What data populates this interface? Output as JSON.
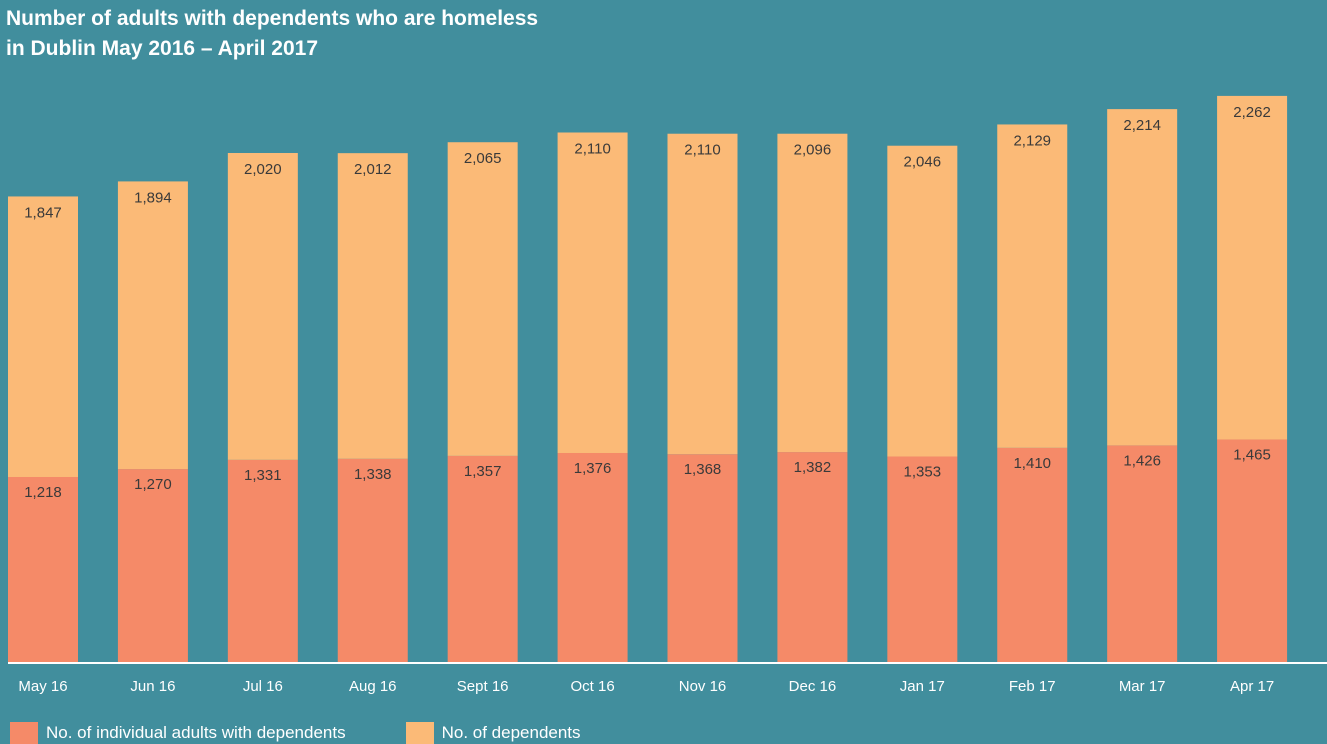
{
  "chart_data": {
    "type": "bar",
    "stacked": true,
    "title_line1": "Number of adults with dependents who are homeless",
    "title_line2": "in Dublin May 2016 – April 2017",
    "categories": [
      "May 16",
      "Jun 16",
      "Jul 16",
      "Aug 16",
      "Sept 16",
      "Oct 16",
      "Nov 16",
      "Dec 16",
      "Jan 17",
      "Feb 17",
      "Mar 17",
      "Apr 17"
    ],
    "series": [
      {
        "name": "No. of individual adults with dependents",
        "color": "#f58a68",
        "values": [
          1218,
          1270,
          1331,
          1338,
          1357,
          1376,
          1368,
          1382,
          1353,
          1410,
          1426,
          1465
        ],
        "labels": [
          "1,218",
          "1,270",
          "1,331",
          "1,338",
          "1,357",
          "1,376",
          "1,368",
          "1,382",
          "1,353",
          "1,410",
          "1,426",
          "1,465"
        ]
      },
      {
        "name": "No. of dependents",
        "color": "#fbba77",
        "values": [
          1847,
          1894,
          2020,
          2012,
          2065,
          2110,
          2110,
          2096,
          2046,
          2129,
          2214,
          2262
        ],
        "labels": [
          "1,847",
          "1,894",
          "2,020",
          "2,012",
          "2,065",
          "2,110",
          "2,110",
          "2,096",
          "2,046",
          "2,129",
          "2,214",
          "2,262"
        ]
      }
    ],
    "ylim": [
      0,
      3700
    ],
    "grid": false,
    "legend_position": "bottom-left",
    "baseline_color": "#ffffff"
  }
}
